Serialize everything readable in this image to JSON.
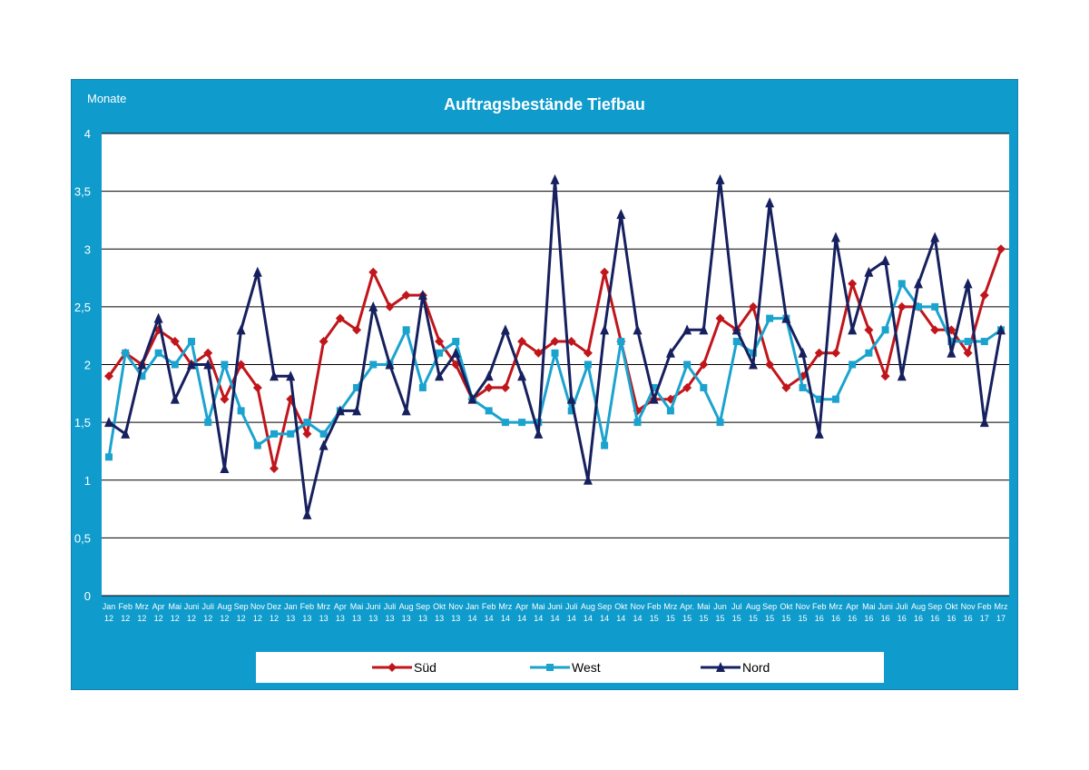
{
  "chart_data": {
    "type": "line",
    "title": "Auftragsbestände Tiefbau",
    "ylabel": "Monate",
    "ylim": [
      0,
      4
    ],
    "yticks": [
      "0",
      "0,5",
      "1",
      "1,5",
      "2",
      "2,5",
      "3",
      "3,5",
      "4"
    ],
    "grid": true,
    "legend_position": "bottom",
    "categories": [
      [
        "Jan",
        "12"
      ],
      [
        "Feb",
        "12"
      ],
      [
        "Mrz",
        "12"
      ],
      [
        "Apr",
        "12"
      ],
      [
        "Mai",
        "12"
      ],
      [
        "Juni",
        "12"
      ],
      [
        "Juli",
        "12"
      ],
      [
        "Aug",
        "12"
      ],
      [
        "Sep",
        "12"
      ],
      [
        "Nov",
        "12"
      ],
      [
        "Dez",
        "12"
      ],
      [
        "Jan",
        "13"
      ],
      [
        "Feb",
        "13"
      ],
      [
        "Mrz",
        "13"
      ],
      [
        "Apr",
        "13"
      ],
      [
        "Mai",
        "13"
      ],
      [
        "Juni",
        "13"
      ],
      [
        "Juli",
        "13"
      ],
      [
        "Aug",
        "13"
      ],
      [
        "Sep",
        "13"
      ],
      [
        "Okt",
        "13"
      ],
      [
        "Nov",
        "13"
      ],
      [
        "Jan",
        "14"
      ],
      [
        "Feb",
        "14"
      ],
      [
        "Mrz",
        "14"
      ],
      [
        "Apr",
        "14"
      ],
      [
        "Mai",
        "14"
      ],
      [
        "Juni",
        "14"
      ],
      [
        "Juli",
        "14"
      ],
      [
        "Aug",
        "14"
      ],
      [
        "Sep",
        "14"
      ],
      [
        "Okt",
        "14"
      ],
      [
        "Nov",
        "14"
      ],
      [
        "Feb",
        "15"
      ],
      [
        "Mrz",
        "15"
      ],
      [
        "Apr.",
        "15"
      ],
      [
        "Mai",
        "15"
      ],
      [
        "Jun",
        "15"
      ],
      [
        "Jul",
        "15"
      ],
      [
        "Aug",
        "15"
      ],
      [
        "Sep",
        "15"
      ],
      [
        "Okt",
        "15"
      ],
      [
        "Nov",
        "15"
      ],
      [
        "Feb",
        "16"
      ],
      [
        "Mrz",
        "16"
      ],
      [
        "Apr",
        "16"
      ],
      [
        "Mai",
        "16"
      ],
      [
        "Juni",
        "16"
      ],
      [
        "Juli",
        "16"
      ],
      [
        "Aug",
        "16"
      ],
      [
        "Sep",
        "16"
      ],
      [
        "Okt",
        "16"
      ],
      [
        "Nov",
        "16"
      ],
      [
        "Feb",
        "17"
      ],
      [
        "Mrz",
        "17"
      ]
    ],
    "series": [
      {
        "name": "Süd",
        "color": "#c0161b",
        "marker": "diamond",
        "values": [
          1.9,
          2.1,
          2.0,
          2.3,
          2.2,
          2.0,
          2.1,
          1.7,
          2.0,
          1.8,
          1.1,
          1.7,
          1.4,
          2.2,
          2.4,
          2.3,
          2.8,
          2.5,
          2.6,
          2.6,
          2.2,
          2.0,
          1.7,
          1.8,
          1.8,
          2.2,
          2.1,
          2.2,
          2.2,
          2.1,
          2.8,
          2.2,
          1.6,
          1.7,
          1.7,
          1.8,
          2.0,
          2.4,
          2.3,
          2.5,
          2.0,
          1.8,
          1.9,
          2.1,
          2.1,
          2.7,
          2.3,
          1.9,
          2.5,
          2.5,
          2.3,
          2.3,
          2.1,
          2.6,
          3.0
        ]
      },
      {
        "name": "West",
        "color": "#1ba3cf",
        "marker": "square",
        "values": [
          1.2,
          2.1,
          1.9,
          2.1,
          2.0,
          2.2,
          1.5,
          2.0,
          1.6,
          1.3,
          1.4,
          1.4,
          1.5,
          1.4,
          1.6,
          1.8,
          2.0,
          2.0,
          2.3,
          1.8,
          2.1,
          2.2,
          1.7,
          1.6,
          1.5,
          1.5,
          1.5,
          2.1,
          1.6,
          2.0,
          1.3,
          2.2,
          1.5,
          1.8,
          1.6,
          2.0,
          1.8,
          1.5,
          2.2,
          2.1,
          2.4,
          2.4,
          1.8,
          1.7,
          1.7,
          2.0,
          2.1,
          2.3,
          2.7,
          2.5,
          2.5,
          2.2,
          2.2,
          2.2,
          2.3
        ]
      },
      {
        "name": "Nord",
        "color": "#16205e",
        "marker": "triangle",
        "values": [
          1.5,
          1.4,
          2.0,
          2.4,
          1.7,
          2.0,
          2.0,
          1.1,
          2.3,
          2.8,
          1.9,
          1.9,
          0.7,
          1.3,
          1.6,
          1.6,
          2.5,
          2.0,
          1.6,
          2.6,
          1.9,
          2.1,
          1.7,
          1.9,
          2.3,
          1.9,
          1.4,
          3.6,
          1.7,
          1.0,
          2.3,
          3.3,
          2.3,
          1.7,
          2.1,
          2.3,
          2.3,
          3.6,
          2.3,
          2.0,
          3.4,
          2.4,
          2.1,
          1.4,
          3.1,
          2.3,
          2.8,
          2.9,
          1.9,
          2.7,
          3.1,
          2.1,
          2.7,
          1.5,
          2.3
        ]
      }
    ]
  },
  "colors": {
    "frame_background": "#0f9bcb",
    "plot_background": "#ffffff",
    "gridline": "#000000"
  }
}
